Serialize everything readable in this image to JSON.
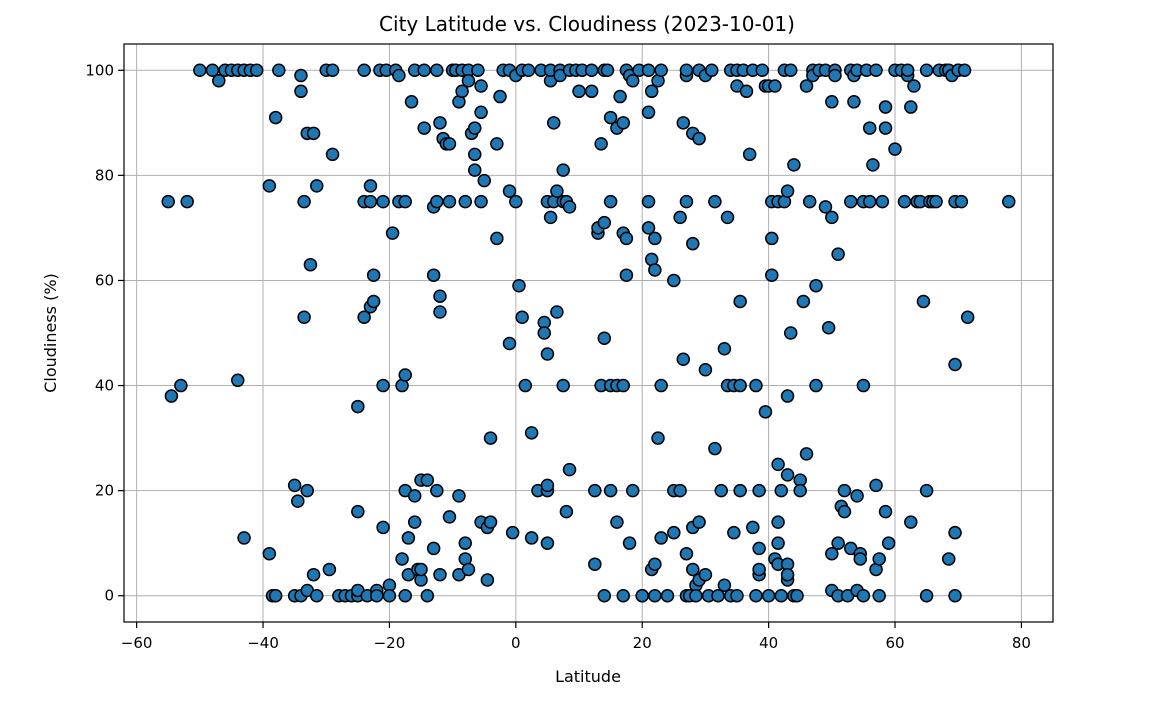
{
  "chart_data": {
    "type": "scatter",
    "title": "City Latitude vs. Cloudiness (2023-10-01)",
    "xlabel": "Latitude",
    "ylabel": "Cloudiness (%)",
    "xlim": [
      -62,
      85
    ],
    "ylim": [
      -5,
      105
    ],
    "grid": true,
    "x_ticks": [
      -60,
      -40,
      -20,
      0,
      20,
      40,
      60,
      80
    ],
    "y_ticks": [
      0,
      20,
      40,
      60,
      80,
      100
    ],
    "point_color": "#1f77b4",
    "edge_color": "#000000",
    "points": [
      [
        -55,
        75
      ],
      [
        -54.5,
        38
      ],
      [
        -53,
        40
      ],
      [
        -52,
        75
      ],
      [
        -50,
        100
      ],
      [
        -48,
        100
      ],
      [
        -47,
        98
      ],
      [
        -46,
        100
      ],
      [
        -45,
        100
      ],
      [
        -44,
        100
      ],
      [
        -43,
        100
      ],
      [
        -42,
        100
      ],
      [
        -41,
        100
      ],
      [
        -44,
        41
      ],
      [
        -43,
        11
      ],
      [
        -39,
        78
      ],
      [
        -39,
        8
      ],
      [
        -38.5,
        0
      ],
      [
        -38,
        91
      ],
      [
        -38,
        0
      ],
      [
        -37.5,
        100
      ],
      [
        -35,
        21
      ],
      [
        -35,
        0
      ],
      [
        -34.5,
        18
      ],
      [
        -34,
        0
      ],
      [
        -34,
        99
      ],
      [
        -34,
        96
      ],
      [
        -33.5,
        75
      ],
      [
        -33.5,
        53
      ],
      [
        -33,
        88
      ],
      [
        -33,
        20
      ],
      [
        -33,
        1
      ],
      [
        -32.5,
        63
      ],
      [
        -32,
        88
      ],
      [
        -32,
        4
      ],
      [
        -31.5,
        78
      ],
      [
        -31.5,
        0
      ],
      [
        -30,
        100
      ],
      [
        -29.5,
        5
      ],
      [
        -29,
        100
      ],
      [
        -29,
        84
      ],
      [
        -28,
        0
      ],
      [
        -27,
        0
      ],
      [
        -26,
        0
      ],
      [
        -25,
        0
      ],
      [
        -25,
        36
      ],
      [
        -25,
        16
      ],
      [
        -25,
        1
      ],
      [
        -24,
        100
      ],
      [
        -24,
        75
      ],
      [
        -24,
        53
      ],
      [
        -23.5,
        0
      ],
      [
        -23,
        78
      ],
      [
        -23,
        75
      ],
      [
        -23,
        55
      ],
      [
        -22.5,
        61
      ],
      [
        -22.5,
        56
      ],
      [
        -22,
        1
      ],
      [
        -22,
        0
      ],
      [
        -21.5,
        100
      ],
      [
        -21,
        75
      ],
      [
        -21,
        40
      ],
      [
        -21,
        13
      ],
      [
        -20.5,
        100
      ],
      [
        -20,
        2
      ],
      [
        -20,
        0
      ],
      [
        -19.5,
        69
      ],
      [
        -19,
        100
      ],
      [
        -18.5,
        75
      ],
      [
        -18.5,
        99
      ],
      [
        -18,
        40
      ],
      [
        -18,
        7
      ],
      [
        -17.5,
        75
      ],
      [
        -17.5,
        42
      ],
      [
        -17.5,
        20
      ],
      [
        -17.5,
        0
      ],
      [
        -17,
        4
      ],
      [
        -17,
        11
      ],
      [
        -16.5,
        94
      ],
      [
        -16,
        100
      ],
      [
        -16,
        14
      ],
      [
        -16,
        19
      ],
      [
        -15.5,
        5
      ],
      [
        -15,
        22
      ],
      [
        -15,
        3
      ],
      [
        -15,
        5
      ],
      [
        -14.5,
        89
      ],
      [
        -14.5,
        100
      ],
      [
        -14,
        22
      ],
      [
        -14,
        0
      ],
      [
        -13,
        74
      ],
      [
        -13,
        61
      ],
      [
        -13,
        9
      ],
      [
        -12.5,
        75
      ],
      [
        -12.5,
        100
      ],
      [
        -12.5,
        20
      ],
      [
        -12,
        90
      ],
      [
        -12,
        57
      ],
      [
        -12,
        54
      ],
      [
        -12,
        4
      ],
      [
        -11.5,
        87
      ],
      [
        -11,
        86
      ],
      [
        -10.5,
        86
      ],
      [
        -10.5,
        75
      ],
      [
        -10.5,
        15
      ],
      [
        -10,
        100
      ],
      [
        -9.5,
        100
      ],
      [
        -9,
        94
      ],
      [
        -9,
        19
      ],
      [
        -9,
        4
      ],
      [
        -8.5,
        96
      ],
      [
        -8.5,
        100
      ],
      [
        -8,
        75
      ],
      [
        -8,
        10
      ],
      [
        -8,
        7
      ],
      [
        -7.5,
        100
      ],
      [
        -7.5,
        98
      ],
      [
        -7.5,
        5
      ],
      [
        -7,
        88
      ],
      [
        -6.5,
        84
      ],
      [
        -6.5,
        81
      ],
      [
        -6.5,
        89
      ],
      [
        -6,
        100
      ],
      [
        -5.5,
        97
      ],
      [
        -5.5,
        92
      ],
      [
        -5.5,
        75
      ],
      [
        -5.5,
        14
      ],
      [
        -5,
        79
      ],
      [
        -4.5,
        3
      ],
      [
        -4.5,
        13
      ],
      [
        -4,
        30
      ],
      [
        -4,
        14
      ],
      [
        -3,
        68
      ],
      [
        -3,
        86
      ],
      [
        -2.5,
        95
      ],
      [
        -2,
        100
      ],
      [
        -1,
        100
      ],
      [
        -1,
        77
      ],
      [
        -1,
        48
      ],
      [
        -0.5,
        12
      ],
      [
        0,
        99
      ],
      [
        0,
        75
      ],
      [
        0.5,
        59
      ],
      [
        1,
        100
      ],
      [
        1,
        53
      ],
      [
        1.5,
        40
      ],
      [
        2,
        100
      ],
      [
        2.5,
        31
      ],
      [
        2.5,
        11
      ],
      [
        3.5,
        20
      ],
      [
        4,
        100
      ],
      [
        4.5,
        52
      ],
      [
        4.5,
        50
      ],
      [
        5,
        46
      ],
      [
        5,
        75
      ],
      [
        5,
        10
      ],
      [
        5,
        20
      ],
      [
        5,
        21
      ],
      [
        5.5,
        72
      ],
      [
        5.5,
        98
      ],
      [
        5.5,
        100
      ],
      [
        6,
        90
      ],
      [
        6,
        75
      ],
      [
        6.5,
        77
      ],
      [
        6.5,
        54
      ],
      [
        7,
        100
      ],
      [
        7,
        99
      ],
      [
        7.5,
        81
      ],
      [
        7.5,
        40
      ],
      [
        7.5,
        75
      ],
      [
        8,
        16
      ],
      [
        8,
        75
      ],
      [
        8.5,
        100
      ],
      [
        8.5,
        74
      ],
      [
        8.5,
        24
      ],
      [
        9.5,
        100
      ],
      [
        10,
        96
      ],
      [
        10.5,
        100
      ],
      [
        12,
        96
      ],
      [
        12,
        100
      ],
      [
        12.5,
        20
      ],
      [
        12.5,
        6
      ],
      [
        13,
        69
      ],
      [
        13,
        70
      ],
      [
        13.5,
        86
      ],
      [
        13.5,
        40
      ],
      [
        14,
        100
      ],
      [
        14,
        49
      ],
      [
        14,
        71
      ],
      [
        14,
        0
      ],
      [
        14.5,
        100
      ],
      [
        15,
        91
      ],
      [
        15,
        75
      ],
      [
        15,
        40
      ],
      [
        15,
        20
      ],
      [
        16,
        40
      ],
      [
        16,
        89
      ],
      [
        16,
        14
      ],
      [
        16.5,
        95
      ],
      [
        17,
        90
      ],
      [
        17,
        69
      ],
      [
        17,
        0
      ],
      [
        17,
        40
      ],
      [
        17.5,
        68
      ],
      [
        17.5,
        61
      ],
      [
        17.5,
        100
      ],
      [
        18,
        10
      ],
      [
        18,
        99
      ],
      [
        18.5,
        98
      ],
      [
        18.5,
        20
      ],
      [
        19.5,
        100
      ],
      [
        20,
        0
      ],
      [
        20,
        0
      ],
      [
        21,
        92
      ],
      [
        21,
        75
      ],
      [
        21,
        70
      ],
      [
        21,
        100
      ],
      [
        21.5,
        64
      ],
      [
        21.5,
        96
      ],
      [
        21.5,
        5
      ],
      [
        22,
        62
      ],
      [
        22,
        68
      ],
      [
        22,
        6
      ],
      [
        22,
        0
      ],
      [
        22.5,
        98
      ],
      [
        22.5,
        30
      ],
      [
        23,
        40
      ],
      [
        23,
        100
      ],
      [
        23,
        11
      ],
      [
        24,
        0
      ],
      [
        25,
        60
      ],
      [
        25,
        20
      ],
      [
        25,
        12
      ],
      [
        26,
        20
      ],
      [
        26,
        72
      ],
      [
        26.5,
        90
      ],
      [
        26.5,
        45
      ],
      [
        27,
        99
      ],
      [
        27,
        75
      ],
      [
        27,
        100
      ],
      [
        27,
        8
      ],
      [
        27,
        0
      ],
      [
        27.5,
        0
      ],
      [
        28,
        13
      ],
      [
        28,
        88
      ],
      [
        28,
        67
      ],
      [
        28,
        5
      ],
      [
        28.5,
        2
      ],
      [
        28.5,
        0
      ],
      [
        29,
        3
      ],
      [
        29,
        87
      ],
      [
        29,
        100
      ],
      [
        29,
        14
      ],
      [
        30,
        99
      ],
      [
        30,
        43
      ],
      [
        30,
        4
      ],
      [
        30.5,
        0
      ],
      [
        31,
        100
      ],
      [
        31.5,
        75
      ],
      [
        31.5,
        28
      ],
      [
        32,
        0
      ],
      [
        32.5,
        20
      ],
      [
        33,
        47
      ],
      [
        33,
        2
      ],
      [
        33.5,
        40
      ],
      [
        33.5,
        72
      ],
      [
        34,
        100
      ],
      [
        34,
        0
      ],
      [
        34.5,
        12
      ],
      [
        34.5,
        40
      ],
      [
        35,
        100
      ],
      [
        35,
        97
      ],
      [
        35,
        0
      ],
      [
        35.5,
        56
      ],
      [
        35.5,
        20
      ],
      [
        35.5,
        40
      ],
      [
        36,
        100
      ],
      [
        36.5,
        96
      ],
      [
        37,
        84
      ],
      [
        37.5,
        100
      ],
      [
        37.5,
        13
      ],
      [
        38,
        40
      ],
      [
        38,
        0
      ],
      [
        38.5,
        20
      ],
      [
        38.5,
        9
      ],
      [
        38.5,
        4
      ],
      [
        38.5,
        5
      ],
      [
        39,
        100
      ],
      [
        39.5,
        35
      ],
      [
        39.5,
        97
      ],
      [
        40,
        0
      ],
      [
        40,
        97
      ],
      [
        40.5,
        75
      ],
      [
        40.5,
        68
      ],
      [
        40.5,
        61
      ],
      [
        41,
        97
      ],
      [
        41,
        7
      ],
      [
        41.5,
        75
      ],
      [
        41.5,
        25
      ],
      [
        41.5,
        14
      ],
      [
        41.5,
        10
      ],
      [
        41.5,
        6
      ],
      [
        42,
        20
      ],
      [
        42,
        0
      ],
      [
        42.5,
        75
      ],
      [
        42.5,
        100
      ],
      [
        43,
        38
      ],
      [
        43,
        77
      ],
      [
        43,
        6
      ],
      [
        43,
        3
      ],
      [
        43,
        4
      ],
      [
        43,
        23
      ],
      [
        43.5,
        100
      ],
      [
        43.5,
        50
      ],
      [
        44,
        0
      ],
      [
        44,
        82
      ],
      [
        44.5,
        0
      ],
      [
        45,
        22
      ],
      [
        45,
        20
      ],
      [
        45.5,
        56
      ],
      [
        46,
        97
      ],
      [
        46,
        27
      ],
      [
        46.5,
        75
      ],
      [
        47,
        100
      ],
      [
        47,
        99
      ],
      [
        47.5,
        59
      ],
      [
        47.5,
        40
      ],
      [
        48,
        100
      ],
      [
        49,
        100
      ],
      [
        49,
        74
      ],
      [
        49.5,
        51
      ],
      [
        50,
        72
      ],
      [
        50,
        94
      ],
      [
        50,
        8
      ],
      [
        50,
        1
      ],
      [
        50.5,
        100
      ],
      [
        50.5,
        99
      ],
      [
        51,
        65
      ],
      [
        51,
        10
      ],
      [
        51,
        0
      ],
      [
        51.5,
        17
      ],
      [
        52,
        20
      ],
      [
        52,
        16
      ],
      [
        52.5,
        0
      ],
      [
        53,
        100
      ],
      [
        53,
        75
      ],
      [
        53,
        9
      ],
      [
        53.5,
        99
      ],
      [
        53.5,
        94
      ],
      [
        54,
        100
      ],
      [
        54,
        19
      ],
      [
        54,
        1
      ],
      [
        54.5,
        8
      ],
      [
        54.5,
        7
      ],
      [
        55,
        40
      ],
      [
        55,
        75
      ],
      [
        55,
        0
      ],
      [
        55.5,
        100
      ],
      [
        56,
        75
      ],
      [
        56,
        89
      ],
      [
        56.5,
        82
      ],
      [
        57,
        100
      ],
      [
        57,
        21
      ],
      [
        57,
        5
      ],
      [
        57.5,
        7
      ],
      [
        57.5,
        0
      ],
      [
        58,
        75
      ],
      [
        58.5,
        93
      ],
      [
        58.5,
        89
      ],
      [
        58.5,
        16
      ],
      [
        59,
        10
      ],
      [
        60,
        85
      ],
      [
        60,
        100
      ],
      [
        61,
        100
      ],
      [
        61.5,
        75
      ],
      [
        62,
        99
      ],
      [
        62,
        100
      ],
      [
        62.5,
        14
      ],
      [
        62.5,
        93
      ],
      [
        63,
        97
      ],
      [
        63.5,
        75
      ],
      [
        64,
        75
      ],
      [
        64.5,
        56
      ],
      [
        65,
        20
      ],
      [
        65,
        0
      ],
      [
        65,
        100
      ],
      [
        65.5,
        75
      ],
      [
        66,
        75
      ],
      [
        66.5,
        75
      ],
      [
        67,
        100
      ],
      [
        68,
        100
      ],
      [
        68.5,
        100
      ],
      [
        68.5,
        7
      ],
      [
        69,
        99
      ],
      [
        69.5,
        0
      ],
      [
        69.5,
        44
      ],
      [
        69.5,
        12
      ],
      [
        69.5,
        75
      ],
      [
        70,
        100
      ],
      [
        70,
        100
      ],
      [
        70.5,
        75
      ],
      [
        71,
        100
      ],
      [
        71.5,
        53
      ],
      [
        78,
        75
      ]
    ]
  }
}
